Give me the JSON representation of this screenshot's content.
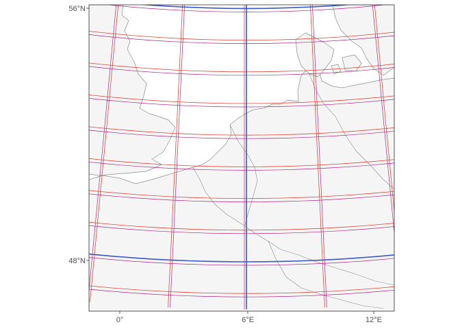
{
  "map": {
    "type": "projected graticule map",
    "region": "Western Europe / North Sea",
    "colors": {
      "land_fill": "#f5f5f5",
      "coastline": "#8c8c8c",
      "major_graticule": "#3b58c4",
      "minor_graticule_red": "#e0453a",
      "minor_graticule_magenta": "#b0237a",
      "panel_border": "#333333",
      "tick_text": "#4d4d4d"
    },
    "axes": {
      "y_labels": [
        {
          "text": "56°N",
          "lat": 56
        },
        {
          "text": "48°N",
          "lat": 48
        }
      ],
      "x_labels": [
        {
          "text": "0°",
          "lon": 0
        },
        {
          "text": "6°E",
          "lon": 6
        },
        {
          "text": "12°E",
          "lon": 12
        }
      ]
    },
    "graticule": {
      "major_lons": [
        0,
        6,
        12
      ],
      "major_lats": [
        48,
        56
      ],
      "lon_range": [
        -1.5,
        13.5
      ],
      "lat_range": [
        46.5,
        57.5
      ],
      "minor_step_deg": 1
    }
  }
}
